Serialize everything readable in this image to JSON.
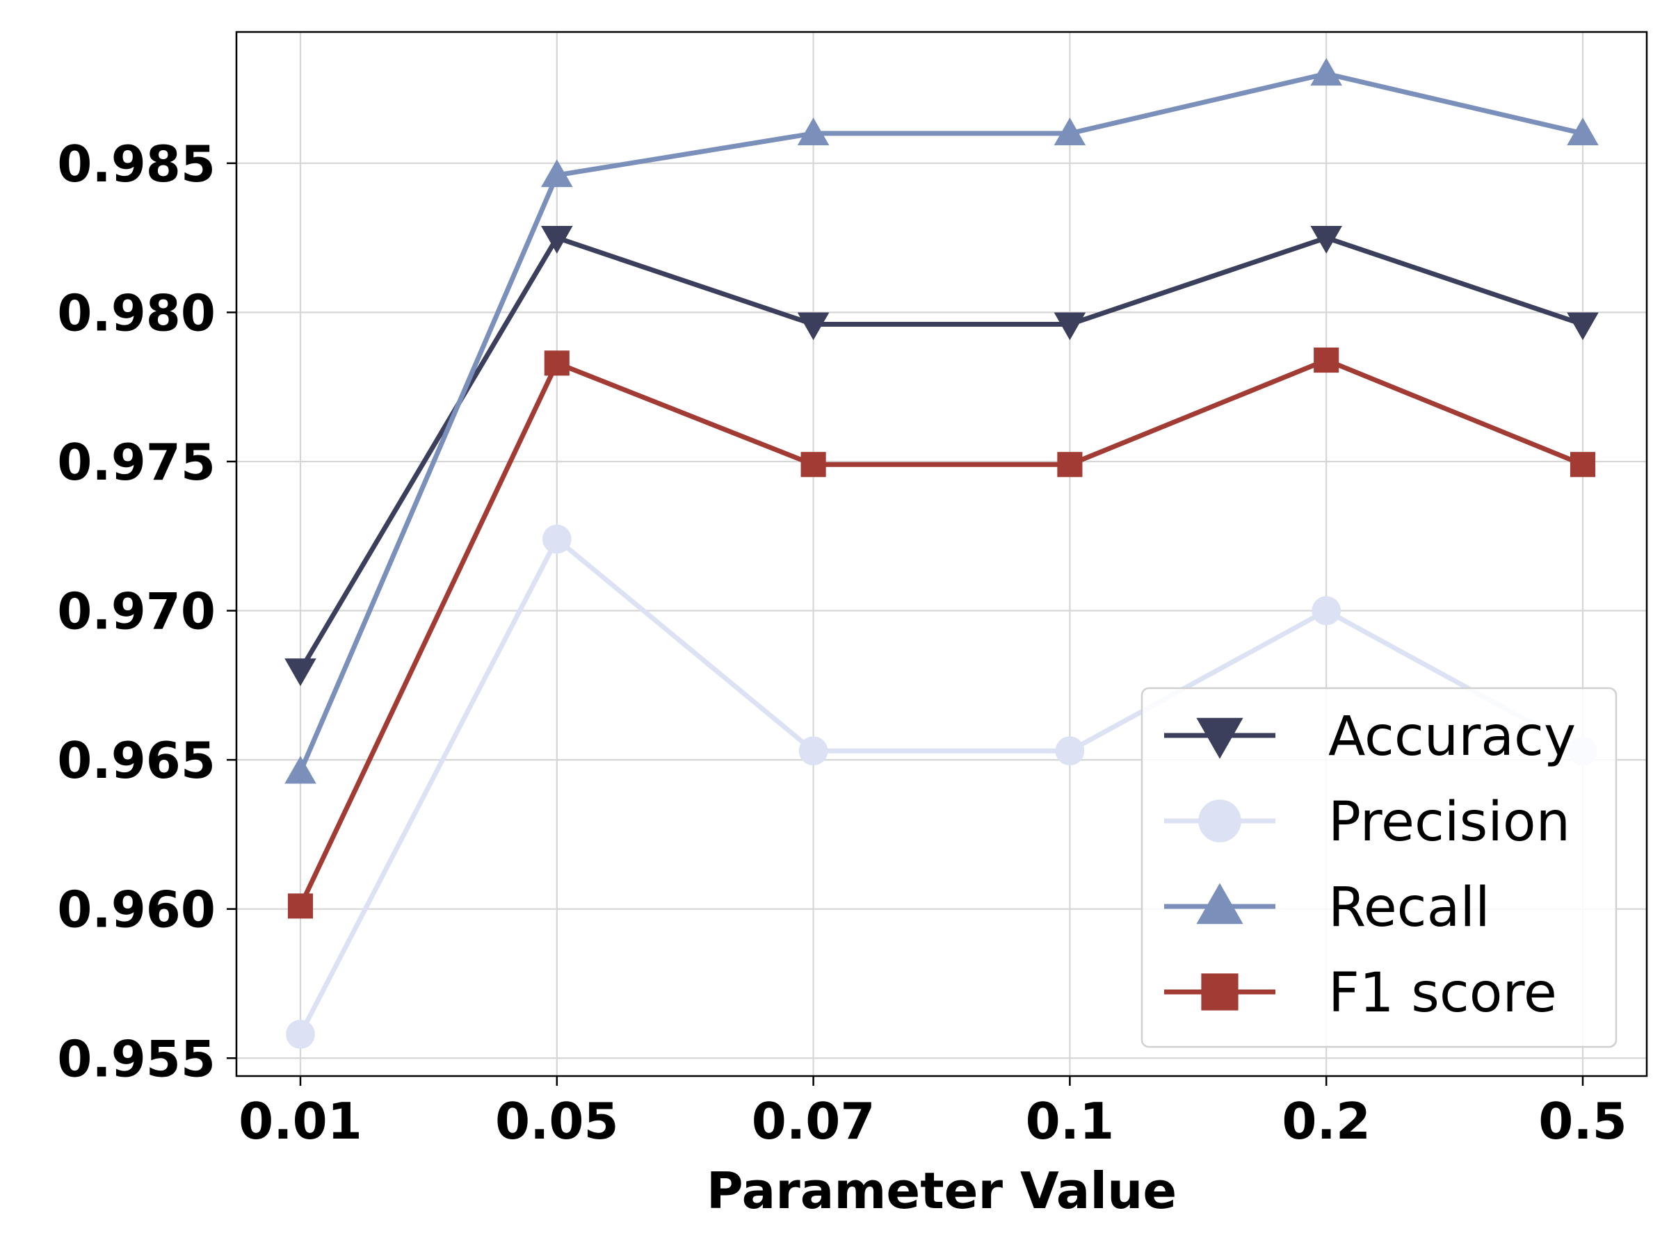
{
  "chart_data": {
    "type": "line",
    "title": "",
    "xlabel": "Parameter Value",
    "ylabel": "",
    "categories": [
      "0.01",
      "0.05",
      "0.07",
      "0.1",
      "0.2",
      "0.5"
    ],
    "ylim": [
      0.9544,
      0.9894
    ],
    "yticks": [
      "0.955",
      "0.960",
      "0.965",
      "0.970",
      "0.975",
      "0.980",
      "0.985"
    ],
    "ytick_values": [
      0.955,
      0.96,
      0.965,
      0.97,
      0.975,
      0.98,
      0.985
    ],
    "grid": true,
    "legend_position": "bottom-right",
    "series": [
      {
        "name": "Accuracy",
        "marker": "triangle-down",
        "color": "#3b3f5c",
        "values": [
          0.968,
          0.9825,
          0.9796,
          0.9796,
          0.9825,
          0.9796
        ]
      },
      {
        "name": "Precision",
        "marker": "circle",
        "color": "#dce2f4",
        "values": [
          0.9558,
          0.9724,
          0.9653,
          0.9653,
          0.97,
          0.9653
        ]
      },
      {
        "name": "Recall",
        "marker": "triangle-up",
        "color": "#7b8fbb",
        "values": [
          0.9646,
          0.9846,
          0.986,
          0.986,
          0.988,
          0.986
        ]
      },
      {
        "name": "F1 score",
        "marker": "square",
        "color": "#a13b33",
        "values": [
          0.9601,
          0.9783,
          0.9749,
          0.9749,
          0.9784,
          0.9749
        ]
      }
    ]
  }
}
